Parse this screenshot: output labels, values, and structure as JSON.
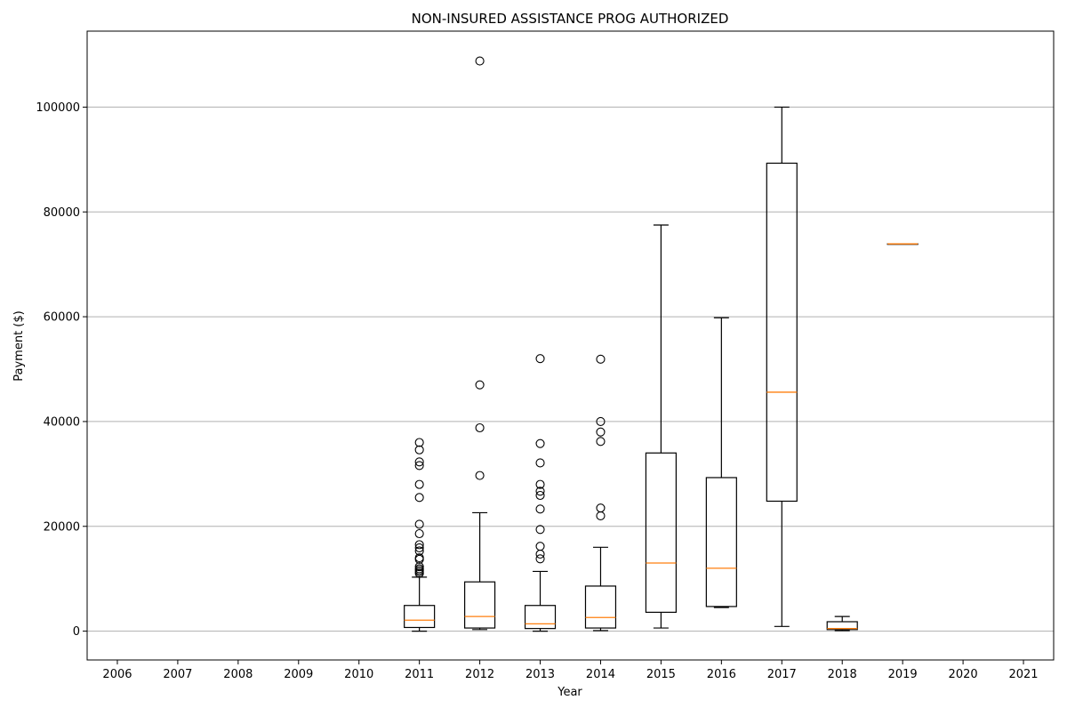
{
  "chart_data": {
    "type": "boxplot",
    "title": "NON-INSURED ASSISTANCE PROG AUTHORIZED",
    "xlabel": "Year",
    "ylabel": "Payment ($)",
    "categories": [
      "2006",
      "2007",
      "2008",
      "2009",
      "2010",
      "2011",
      "2012",
      "2013",
      "2014",
      "2015",
      "2016",
      "2017",
      "2018",
      "2019",
      "2020",
      "2021"
    ],
    "ylim": [
      -5500,
      114500
    ],
    "yticks": [
      0,
      20000,
      40000,
      60000,
      80000,
      100000
    ],
    "grid": "y",
    "legend": "none",
    "colors": {
      "box": "#000000",
      "median": "#ff7f0e",
      "grid": "#b0b0b0"
    },
    "boxes": [
      {
        "year": "2011",
        "whisker_low": 0,
        "q1": 700,
        "median": 2100,
        "q3": 4900,
        "whisker_high": 10300,
        "outliers": [
          11000,
          11300,
          11600,
          11900,
          12300,
          13700,
          14000,
          15300,
          15900,
          16500,
          18600,
          20400,
          25500,
          28000,
          31600,
          32300,
          34600,
          36000
        ]
      },
      {
        "year": "2012",
        "whisker_low": 300,
        "q1": 600,
        "median": 2800,
        "q3": 9400,
        "whisker_high": 22600,
        "outliers": [
          29700,
          38800,
          47000,
          108800
        ]
      },
      {
        "year": "2013",
        "whisker_low": 0,
        "q1": 500,
        "median": 1400,
        "q3": 4900,
        "whisker_high": 11400,
        "outliers": [
          13800,
          14700,
          16200,
          19400,
          23300,
          25900,
          26700,
          28000,
          32100,
          35800,
          52000
        ]
      },
      {
        "year": "2014",
        "whisker_low": 100,
        "q1": 600,
        "median": 2600,
        "q3": 8600,
        "whisker_high": 16000,
        "outliers": [
          22000,
          23500,
          36200,
          38000,
          40000,
          51900
        ]
      },
      {
        "year": "2015",
        "whisker_low": 600,
        "q1": 3600,
        "median": 13000,
        "q3": 34000,
        "whisker_high": 77500,
        "outliers": []
      },
      {
        "year": "2016",
        "whisker_low": 4500,
        "q1": 4700,
        "median": 12000,
        "q3": 29300,
        "whisker_high": 59800,
        "outliers": []
      },
      {
        "year": "2017",
        "whisker_low": 900,
        "q1": 24800,
        "median": 45600,
        "q3": 89300,
        "whisker_high": 100000,
        "outliers": []
      },
      {
        "year": "2018",
        "whisker_low": 100,
        "q1": 300,
        "median": 500,
        "q3": 1800,
        "whisker_high": 2800,
        "outliers": []
      },
      {
        "year": "2019",
        "whisker_low": 73900,
        "q1": 73900,
        "median": 73900,
        "q3": 73900,
        "whisker_high": 73900,
        "outliers": []
      }
    ]
  }
}
